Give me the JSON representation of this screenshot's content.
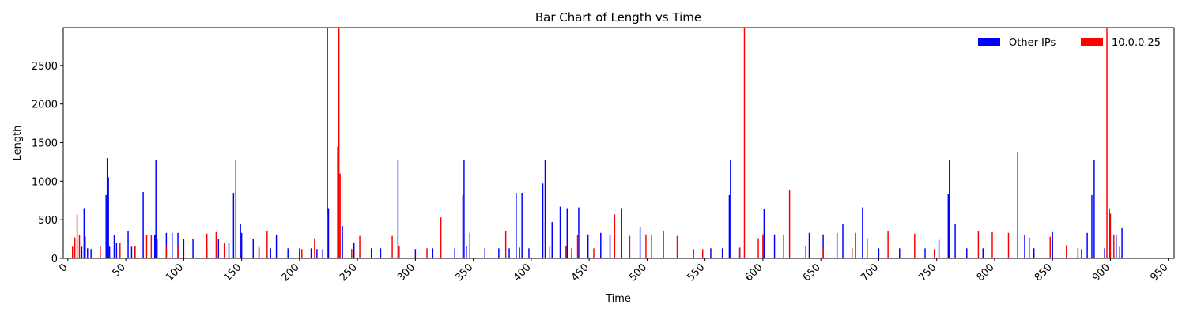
{
  "chart_data": {
    "type": "bar",
    "title": "Bar Chart of Length vs Time",
    "x_label": "Time",
    "y_label": "Length",
    "xlim": [
      -4,
      955
    ],
    "ylim": [
      0,
      2990
    ],
    "xticks": [
      0,
      50,
      100,
      150,
      200,
      250,
      300,
      350,
      400,
      450,
      500,
      550,
      600,
      650,
      700,
      750,
      800,
      850,
      900,
      950
    ],
    "yticks": [
      0,
      500,
      1000,
      1500,
      2000,
      2500
    ],
    "legend": "upper right",
    "series": [
      {
        "name": "Other IPs",
        "color": "#0000ff",
        "x": [
          12,
          14,
          17,
          20,
          33,
          34,
          35,
          36,
          40,
          42,
          52,
          55,
          58,
          65,
          75,
          76,
          77,
          85,
          90,
          95,
          100,
          108,
          120,
          130,
          139,
          143,
          145,
          149,
          150,
          160,
          165,
          175,
          180,
          190,
          200,
          210,
          215,
          220,
          224,
          225,
          233,
          237,
          247,
          262,
          270,
          285,
          300,
          315,
          334,
          341,
          342,
          344,
          360,
          372,
          381,
          387,
          392,
          398,
          410,
          412,
          418,
          425,
          431,
          435,
          441,
          449,
          460,
          468,
          478,
          494,
          504,
          514,
          540,
          555,
          565,
          571,
          572,
          580,
          601,
          610,
          618,
          640,
          652,
          664,
          669,
          680,
          686,
          700,
          718,
          740,
          752,
          760,
          761,
          766,
          776,
          790,
          820,
          826,
          834,
          850,
          872,
          880,
          884,
          886,
          895,
          899,
          905,
          910
        ],
        "values": [
          150,
          650,
          130,
          120,
          820,
          1300,
          1050,
          150,
          300,
          200,
          350,
          150,
          150,
          860,
          300,
          1280,
          250,
          330,
          330,
          330,
          250,
          250,
          130,
          250,
          200,
          850,
          1280,
          440,
          330,
          250,
          130,
          130,
          300,
          130,
          130,
          130,
          120,
          120,
          3000,
          650,
          1450,
          420,
          200,
          130,
          130,
          1280,
          120,
          130,
          130,
          820,
          1280,
          160,
          130,
          130,
          130,
          850,
          850,
          130,
          970,
          1280,
          470,
          670,
          650,
          130,
          660,
          310,
          330,
          310,
          650,
          410,
          310,
          360,
          120,
          130,
          130,
          820,
          1280,
          130,
          640,
          310,
          310,
          330,
          310,
          330,
          440,
          330,
          660,
          130,
          130,
          130,
          240,
          830,
          1280,
          440,
          130,
          130,
          1380,
          300,
          130,
          340,
          130,
          330,
          820,
          1280,
          130,
          650,
          310,
          400
        ]
      },
      {
        "name": "10.0.0.25",
        "color": "#ff0000",
        "x": [
          4,
          6,
          8,
          10,
          15,
          28,
          45,
          58,
          68,
          72,
          85,
          95,
          120,
          128,
          135,
          165,
          172,
          202,
          213,
          224,
          234,
          235,
          245,
          252,
          280,
          286,
          310,
          322,
          347,
          378,
          390,
          416,
          430,
          440,
          454,
          472,
          485,
          499,
          526,
          548,
          580,
          584,
          596,
          600,
          623,
          637,
          652,
          677,
          690,
          708,
          731,
          748,
          786,
          798,
          812,
          830,
          848,
          862,
          875,
          897,
          900,
          903,
          908
        ],
        "values": [
          150,
          270,
          570,
          300,
          280,
          150,
          200,
          160,
          300,
          300,
          150,
          150,
          320,
          340,
          200,
          150,
          350,
          120,
          260,
          580,
          3000,
          1100,
          120,
          290,
          290,
          160,
          130,
          530,
          330,
          350,
          140,
          150,
          160,
          300,
          130,
          570,
          290,
          310,
          290,
          120,
          140,
          3000,
          260,
          310,
          880,
          160,
          140,
          130,
          260,
          350,
          320,
          120,
          350,
          340,
          330,
          270,
          280,
          170,
          120,
          3000,
          580,
          300,
          150
        ]
      }
    ]
  }
}
